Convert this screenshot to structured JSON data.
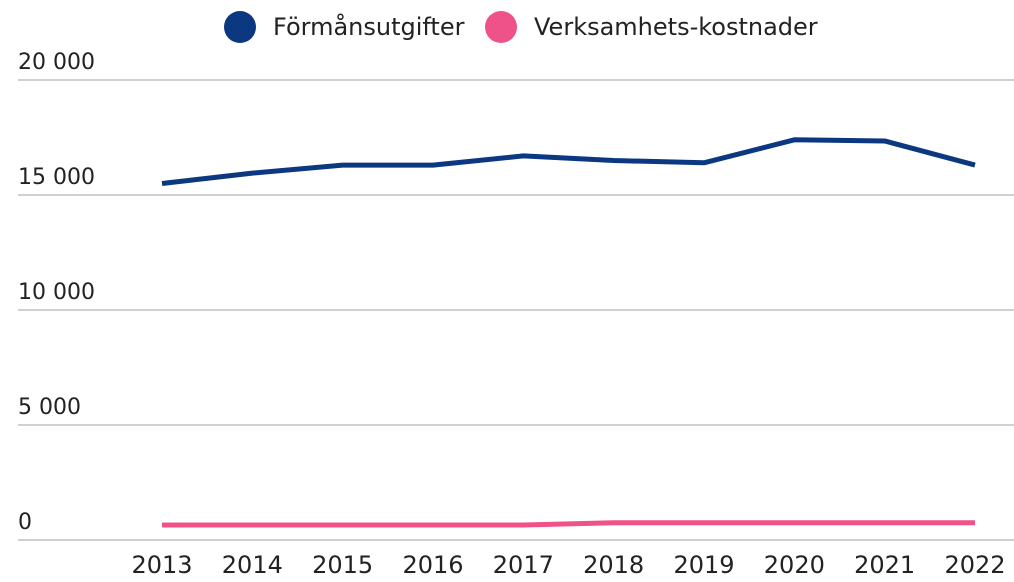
{
  "chart_data": {
    "type": "line",
    "categories": [
      "2013",
      "2014",
      "2015",
      "2016",
      "2017",
      "2018",
      "2019",
      "2020",
      "2021",
      "2022"
    ],
    "series": [
      {
        "name": "Förmånsutgifter",
        "color": "#0b3880",
        "values": [
          15500,
          15950,
          16300,
          16300,
          16700,
          16500,
          16400,
          17400,
          17350,
          16300
        ]
      },
      {
        "name": "Verksamhets-kostnader",
        "color": "#ef5189",
        "values": [
          650,
          650,
          650,
          650,
          650,
          750,
          750,
          750,
          750,
          750
        ]
      }
    ],
    "ylim": [
      0,
      20000
    ],
    "yticks": [
      0,
      {
        "value": 5000,
        "label": "5 000"
      },
      {
        "value": 10000,
        "label": "10 000"
      },
      {
        "value": 15000,
        "label": "15 000"
      },
      {
        "value": 20000,
        "label": "20 000"
      }
    ],
    "grid": true
  }
}
